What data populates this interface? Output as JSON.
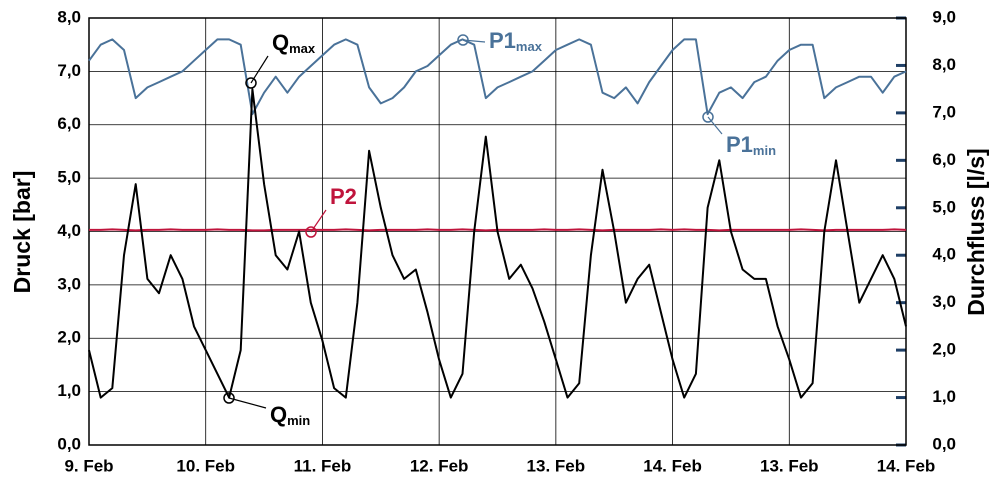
{
  "chart_data": {
    "type": "line",
    "y_label": "Druck [bar]",
    "y2_label": "Durchfluss [l/s]",
    "xlim": [
      0,
      7
    ],
    "xticks": [
      {
        "value": 0,
        "label": "9. Feb"
      },
      {
        "value": 1,
        "label": "10. Feb"
      },
      {
        "value": 2,
        "label": "11. Feb"
      },
      {
        "value": 3,
        "label": "12. Feb"
      },
      {
        "value": 4,
        "label": "13. Feb"
      },
      {
        "value": 5,
        "label": "14. Feb"
      },
      {
        "value": 6,
        "label": "13. Feb"
      },
      {
        "value": 7,
        "label": "14. Feb"
      }
    ],
    "ylim": [
      0,
      8
    ],
    "yticks": [
      {
        "value": 0,
        "label": "0,0"
      },
      {
        "value": 1,
        "label": "1,0"
      },
      {
        "value": 2,
        "label": "2,0"
      },
      {
        "value": 3,
        "label": "3,0"
      },
      {
        "value": 4,
        "label": "4,0"
      },
      {
        "value": 5,
        "label": "5,0"
      },
      {
        "value": 6,
        "label": "6,0"
      },
      {
        "value": 7,
        "label": "7,0"
      },
      {
        "value": 8,
        "label": "8,0"
      }
    ],
    "y2lim": [
      0,
      9
    ],
    "y2ticks": [
      {
        "value": 0,
        "label": "0,0"
      },
      {
        "value": 1,
        "label": "1,0"
      },
      {
        "value": 2,
        "label": "2,0"
      },
      {
        "value": 3,
        "label": "3,0"
      },
      {
        "value": 4,
        "label": "4,0"
      },
      {
        "value": 5,
        "label": "5,0"
      },
      {
        "value": 6,
        "label": "6,0"
      },
      {
        "value": 7,
        "label": "7,0"
      },
      {
        "value": 8,
        "label": "8,0"
      },
      {
        "value": 9,
        "label": "9,0"
      }
    ],
    "grid": true,
    "x": [
      0,
      0.1,
      0.2,
      0.3,
      0.4,
      0.5,
      0.6,
      0.7,
      0.8,
      0.9,
      1,
      1.1,
      1.2,
      1.3,
      1.4,
      1.5,
      1.6,
      1.7,
      1.8,
      1.9,
      2,
      2.1,
      2.2,
      2.3,
      2.4,
      2.5,
      2.6,
      2.7,
      2.8,
      2.9,
      3,
      3.1,
      3.2,
      3.3,
      3.4,
      3.5,
      3.6,
      3.7,
      3.8,
      3.9,
      4,
      4.1,
      4.2,
      4.3,
      4.4,
      4.5,
      4.6,
      4.7,
      4.8,
      4.9,
      5,
      5.1,
      5.2,
      5.3,
      5.4,
      5.5,
      5.6,
      5.7,
      5.8,
      5.9,
      6,
      6.1,
      6.2,
      6.3,
      6.4,
      6.5,
      6.6,
      6.7,
      6.8,
      6.9,
      7
    ],
    "series": [
      {
        "color": "#4a7299",
        "values": [
          7.2,
          7.5,
          7.6,
          7.4,
          6.5,
          6.7,
          6.8,
          6.9,
          7.0,
          7.2,
          7.4,
          7.6,
          7.6,
          7.5,
          6.2,
          6.6,
          6.9,
          6.6,
          6.9,
          7.1,
          7.3,
          7.5,
          7.6,
          7.5,
          6.7,
          6.4,
          6.5,
          6.7,
          7.0,
          7.1,
          7.3,
          7.5,
          7.6,
          7.5,
          6.5,
          6.7,
          6.8,
          6.9,
          7.0,
          7.2,
          7.4,
          7.5,
          7.6,
          7.5,
          6.6,
          6.5,
          6.7,
          6.4,
          6.8,
          7.1,
          7.4,
          7.6,
          7.6,
          6.2,
          6.6,
          6.7,
          6.5,
          6.8,
          6.9,
          7.2,
          7.4,
          7.5,
          7.5,
          6.5,
          6.7,
          6.8,
          6.9,
          6.9,
          6.6,
          6.9,
          7.0
        ]
      },
      {
        "color": "#c0143c",
        "values": [
          4.03,
          4.03,
          4.04,
          4.03,
          4.02,
          4.03,
          4.03,
          4.04,
          4.03,
          4.03,
          4.03,
          4.04,
          4.03,
          4.03,
          4.02,
          4.02,
          4.03,
          4.03,
          4.03,
          4.03,
          4.03,
          4.03,
          4.04,
          4.03,
          4.02,
          4.03,
          4.03,
          4.03,
          4.03,
          4.04,
          4.03,
          4.03,
          4.04,
          4.03,
          4.02,
          4.03,
          4.03,
          4.03,
          4.03,
          4.04,
          4.03,
          4.03,
          4.04,
          4.03,
          4.02,
          4.03,
          4.03,
          4.03,
          4.03,
          4.04,
          4.03,
          4.04,
          4.03,
          4.03,
          4.02,
          4.03,
          4.03,
          4.03,
          4.03,
          4.03,
          4.03,
          4.04,
          4.03,
          4.02,
          4.03,
          4.03,
          4.03,
          4.03,
          4.03,
          4.04,
          4.03
        ]
      },
      {
        "color": "#000000",
        "axis": "y2",
        "values": [
          2.0,
          1.0,
          1.2,
          4.0,
          5.5,
          3.5,
          3.2,
          4.0,
          3.5,
          2.5,
          2.0,
          1.5,
          1.0,
          2.0,
          7.5,
          5.5,
          4.0,
          3.7,
          4.5,
          3.0,
          2.2,
          1.2,
          1.0,
          3.0,
          6.2,
          5.0,
          4.0,
          3.5,
          3.7,
          2.8,
          1.8,
          1.0,
          1.5,
          4.5,
          6.5,
          4.5,
          3.5,
          3.8,
          3.3,
          2.6,
          1.8,
          1.0,
          1.3,
          4.0,
          5.8,
          4.5,
          3.0,
          3.5,
          3.8,
          2.8,
          1.8,
          1.0,
          1.5,
          5.0,
          6.0,
          4.5,
          3.7,
          3.5,
          3.5,
          2.5,
          1.8,
          1.0,
          1.3,
          4.5,
          6.0,
          4.5,
          3.0,
          3.5,
          4.0,
          3.5,
          2.5
        ]
      }
    ],
    "annotations": [
      {
        "text": "Q",
        "sub": "max"
      },
      {
        "text": "P1",
        "sub": "max"
      },
      {
        "text": "P1",
        "sub": "min"
      },
      {
        "text": "P2"
      },
      {
        "text": "Q",
        "sub": "min"
      }
    ]
  }
}
